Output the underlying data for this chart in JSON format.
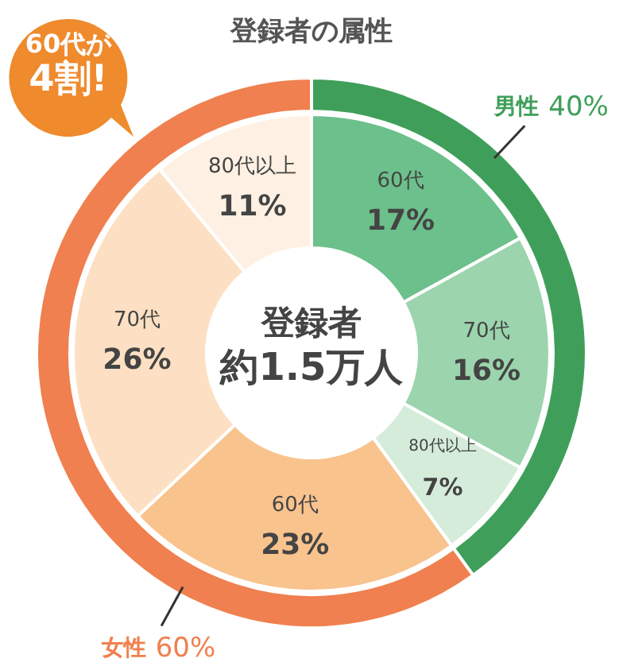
{
  "chart_data": [
    {
      "type": "donut",
      "title": "登録者の属性",
      "categories": [
        "男性",
        "女性"
      ],
      "values": [
        40,
        60
      ],
      "colors": [
        "#3f9f5a",
        "#f0804f"
      ],
      "value_labels": [
        "40%",
        "60%"
      ],
      "annotations": [
        "60代が",
        "4割!",
        "登録者",
        "約1.5万人"
      ]
    },
    {
      "type": "donut",
      "categories": [
        "60代",
        "70代",
        "80代以上",
        "60代",
        "70代",
        "80代以上"
      ],
      "values": [
        17,
        16,
        7,
        23,
        26,
        11
      ],
      "colors": [
        "#6cc08b",
        "#9bd4ad",
        "#d5ecda",
        "#f9c38e",
        "#fde0c3",
        "#fef1e3"
      ],
      "value_labels": [
        "17%",
        "16%",
        "7%",
        "23%",
        "26%",
        "11%"
      ]
    }
  ]
}
